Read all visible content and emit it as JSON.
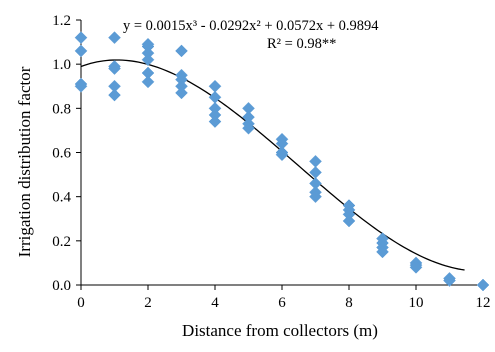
{
  "chart_data": {
    "type": "scatter",
    "xlabel": "Distance from collectors (m)",
    "ylabel": "Irrigation distribution factor",
    "xlim": [
      0,
      12
    ],
    "ylim": [
      0,
      1.2
    ],
    "x_ticks": [
      "0",
      "2",
      "4",
      "6",
      "8",
      "10",
      "12"
    ],
    "y_ticks": [
      "0.0",
      "0.2",
      "0.4",
      "0.6",
      "0.8",
      "1.0",
      "1.2"
    ],
    "x_tick_values": [
      0,
      2,
      4,
      6,
      8,
      10,
      12
    ],
    "y_tick_values": [
      0,
      0.2,
      0.4,
      0.6,
      0.8,
      1.0,
      1.2
    ],
    "grid": false,
    "marker": "diamond",
    "marker_color": "#5b9bd5",
    "line_color": "#000000",
    "annotations": {
      "equation": "y = 0.0015x³  - 0.0292x²  + 0.0572x  + 0.9894",
      "r_squared": "R² = 0.98**"
    },
    "trendline": {
      "type": "polynomial",
      "coefficients": [
        0.0015,
        -0.0292,
        0.0572,
        0.9894
      ],
      "x_range": [
        0,
        11.45
      ]
    },
    "points": [
      [
        0,
        1.12
      ],
      [
        0,
        1.06
      ],
      [
        0,
        0.91
      ],
      [
        0,
        0.9
      ],
      [
        1,
        1.12
      ],
      [
        1,
        0.99
      ],
      [
        1,
        0.98
      ],
      [
        1,
        0.9
      ],
      [
        1,
        0.86
      ],
      [
        2,
        1.09
      ],
      [
        2,
        1.08
      ],
      [
        2,
        1.05
      ],
      [
        2,
        1.02
      ],
      [
        2,
        0.96
      ],
      [
        2,
        0.92
      ],
      [
        3,
        1.06
      ],
      [
        3,
        0.95
      ],
      [
        3,
        0.93
      ],
      [
        3,
        0.9
      ],
      [
        3,
        0.87
      ],
      [
        4,
        0.9
      ],
      [
        4,
        0.85
      ],
      [
        4,
        0.8
      ],
      [
        4,
        0.77
      ],
      [
        4,
        0.74
      ],
      [
        5,
        0.8
      ],
      [
        5,
        0.76
      ],
      [
        5,
        0.73
      ],
      [
        5,
        0.71
      ],
      [
        6,
        0.66
      ],
      [
        6,
        0.64
      ],
      [
        6,
        0.6
      ],
      [
        6,
        0.59
      ],
      [
        7,
        0.56
      ],
      [
        7,
        0.51
      ],
      [
        7,
        0.46
      ],
      [
        7,
        0.42
      ],
      [
        7,
        0.4
      ],
      [
        8,
        0.36
      ],
      [
        8,
        0.34
      ],
      [
        8,
        0.32
      ],
      [
        8,
        0.29
      ],
      [
        9,
        0.21
      ],
      [
        9,
        0.19
      ],
      [
        9,
        0.17
      ],
      [
        9,
        0.15
      ],
      [
        10,
        0.1
      ],
      [
        10,
        0.09
      ],
      [
        10,
        0.08
      ],
      [
        11,
        0.03
      ],
      [
        11,
        0.02
      ],
      [
        12,
        0.0
      ]
    ]
  }
}
